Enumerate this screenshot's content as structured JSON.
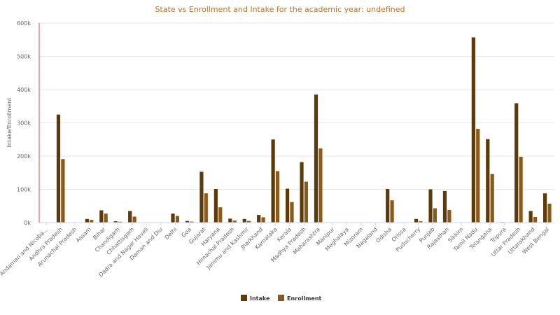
{
  "chart_data": {
    "type": "bar",
    "title": "State vs Enrollment and Intake for the academic year: undefined",
    "xlabel": "",
    "ylabel": "Intake/Enrollment",
    "ylim": [
      0,
      600000
    ],
    "yticks": [
      "0k",
      "100k",
      "200k",
      "300k",
      "400k",
      "500k",
      "600k"
    ],
    "grid": true,
    "legend_position": "bottom-center",
    "categories": [
      "Andaman and Nicoba…",
      "Andhra Pradesh",
      "Arunachal Pradesh",
      "Assam",
      "Bihar",
      "Chandigarh",
      "Chhattisgarh",
      "Dadra and Nagar Haveli",
      "Daman and Diu",
      "Delhi",
      "Goa",
      "Gujarat",
      "Haryana",
      "Himachal Pradesh",
      "Jammu and Kashmir",
      "Jharkhand",
      "Karnataka",
      "Kerala",
      "Madhya Pradesh",
      "Maharashtra",
      "Manipur",
      "Meghalaya",
      "Mizoram",
      "Nagaland",
      "Odisha",
      "Orissa",
      "Puducherry",
      "Punjab",
      "Rajasthan",
      "Sikkim",
      "Tamil Nadu",
      "Telangana",
      "Tripura",
      "Uttar Pradesh",
      "Uttarakhand",
      "West Bengal"
    ],
    "series": [
      {
        "name": "Intake",
        "color": "#5c3a0a",
        "values": [
          500,
          325000,
          1000,
          11000,
          37000,
          4000,
          35000,
          300,
          300,
          27000,
          5000,
          153000,
          101000,
          12000,
          11000,
          23000,
          250000,
          102000,
          182000,
          385000,
          500,
          500,
          500,
          500,
          101000,
          500,
          11000,
          100000,
          95000,
          500,
          557000,
          251000,
          1500,
          359000,
          35000,
          88000
        ]
      },
      {
        "name": "Enrollment",
        "color": "#8b5a1b",
        "values": [
          200,
          191000,
          500,
          8000,
          27000,
          2500,
          18000,
          200,
          200,
          20000,
          3000,
          88000,
          46000,
          6000,
          5000,
          16000,
          155000,
          62000,
          123000,
          223000,
          300,
          300,
          300,
          300,
          67000,
          300,
          4000,
          43000,
          38000,
          300,
          282000,
          146000,
          800,
          198000,
          17000,
          57000
        ]
      }
    ]
  }
}
